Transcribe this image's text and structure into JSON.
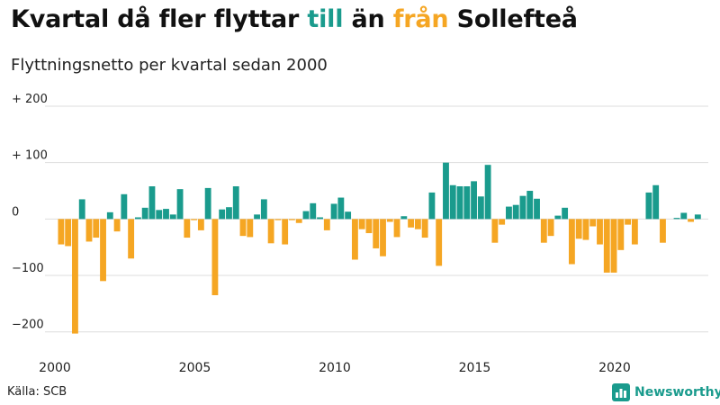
{
  "header": {
    "title_part1": "Kvartal då fler flyttar ",
    "title_till": "till",
    "title_part2": " än ",
    "title_fran": "från",
    "title_part3": " Sollefteå",
    "subtitle": "Flyttningsnetto per kvartal sedan 2000"
  },
  "footer": {
    "source": "Källa: SCB",
    "brand": "Newsworthy",
    "brand_icon": "bar-chart-icon"
  },
  "colors": {
    "positive": "#1a9b8d",
    "negative": "#f5a623",
    "grid": "#dddddd",
    "axis_text": "#222222"
  },
  "chart_data": {
    "type": "bar",
    "title": "Kvartal då fler flyttar till än från Sollefteå",
    "subtitle": "Flyttningsnetto per kvartal sedan 2000",
    "x_start": 2000.0,
    "x_step": 0.25,
    "xlim": [
      2000,
      2023.25
    ],
    "ylim": [
      -210,
      200
    ],
    "y_ticks": [
      200,
      100,
      0,
      -100,
      -200
    ],
    "y_tick_labels": [
      "+ 200",
      "+ 100",
      "0",
      "−100",
      "−200"
    ],
    "x_ticks": [
      2000,
      2005,
      2010,
      2015,
      2020
    ],
    "x_tick_labels": [
      "2000",
      "2005",
      "2010",
      "2015",
      "2020"
    ],
    "grid": true,
    "values": [
      -45,
      -48,
      -203,
      35,
      -40,
      -33,
      -110,
      12,
      -22,
      44,
      -70,
      3,
      20,
      58,
      16,
      18,
      8,
      53,
      -33,
      -2,
      -20,
      55,
      -135,
      17,
      21,
      58,
      -30,
      -32,
      8,
      35,
      -43,
      -2,
      -45,
      -2,
      -7,
      14,
      28,
      3,
      -20,
      27,
      38,
      13,
      -72,
      -18,
      -25,
      -52,
      -66,
      -5,
      -32,
      5,
      -15,
      -18,
      -33,
      47,
      -83,
      100,
      60,
      58,
      58,
      67,
      40,
      96,
      -42,
      -10,
      22,
      25,
      41,
      50,
      36,
      -42,
      -30,
      6,
      20,
      -80,
      -35,
      -37,
      -13,
      -45,
      -95,
      -95,
      -55,
      -10,
      -45,
      0,
      47,
      60,
      -42,
      0,
      2,
      11,
      -5,
      8
    ]
  }
}
